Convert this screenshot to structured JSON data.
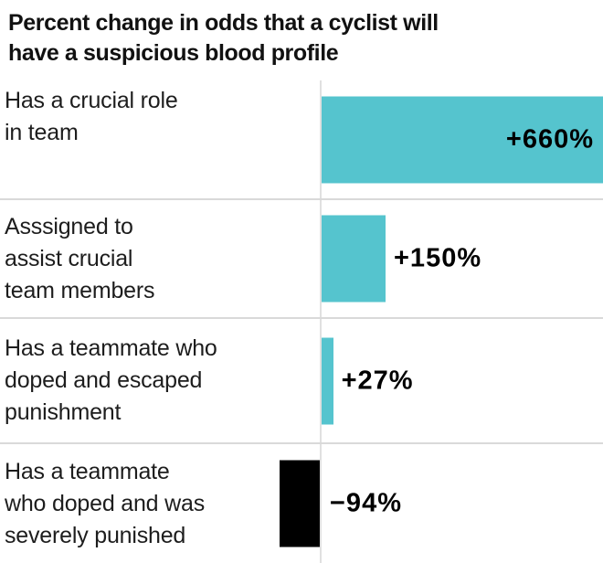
{
  "title": {
    "line1": "Percent change in odds that a cyclist will",
    "line2": "have a suspicious blood profile"
  },
  "chart_data": {
    "type": "bar",
    "orientation": "horizontal",
    "title": "Percent change in odds that a cyclist will have a suspicious blood profile",
    "categories": [
      "Has a crucial role in team",
      "Asssigned to assist crucial team members",
      "Has a teammate who doped and escaped punishment",
      "Has a teammate who doped and was severely punished"
    ],
    "values": [
      660,
      150,
      27,
      -94
    ],
    "value_labels": [
      "+660%",
      "+150%",
      "+27%",
      "−94%"
    ],
    "unit": "percent",
    "baseline": 0,
    "xlim": [
      -94,
      660
    ],
    "grid": "baseline-only",
    "legend": "none",
    "colors": {
      "positive_bar": "#55c4ce",
      "negative_bar": "#000000",
      "divider": "#d9d9d9",
      "baseline": "#e0e0e0",
      "label_text": "#1d1d1d",
      "value_text": "#000000"
    }
  },
  "rows": [
    {
      "lines": [
        "Has a crucial role",
        "in team"
      ],
      "value_label": "+660%",
      "label_inside": true
    },
    {
      "lines": [
        "Asssigned to",
        "assist crucial",
        "team members"
      ],
      "value_label": "+150%",
      "label_inside": false
    },
    {
      "lines": [
        "Has a teammate who",
        "doped and escaped",
        "punishment"
      ],
      "value_label": "+27%",
      "label_inside": false
    },
    {
      "lines": [
        "Has a teammate",
        "who doped and was",
        "severely punished"
      ],
      "value_label": "−94%",
      "label_inside": false
    }
  ]
}
